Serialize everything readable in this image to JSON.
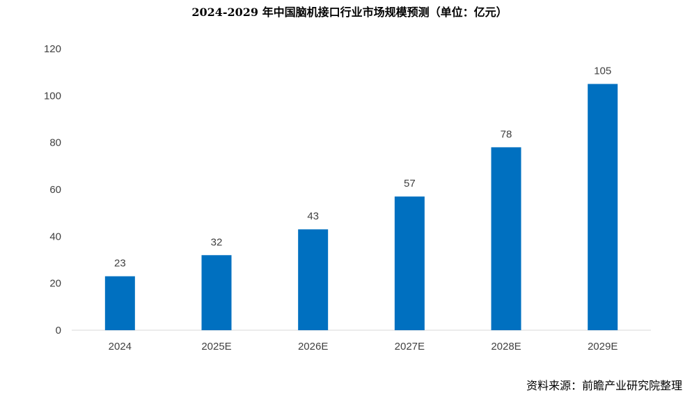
{
  "chart_data": {
    "type": "bar",
    "title": "2024-2029 年中国脑机接口行业市场规模预测（单位：亿元）",
    "categories": [
      "2024",
      "2025E",
      "2026E",
      "2027E",
      "2028E",
      "2029E"
    ],
    "values": [
      23,
      32,
      43,
      57,
      78,
      105
    ],
    "data_labels": [
      "23",
      "32",
      "43",
      "57",
      "78",
      "105"
    ],
    "xlabel": "",
    "ylabel": "",
    "ylim": [
      0,
      120
    ],
    "yticks": [
      "0",
      "20",
      "40",
      "60",
      "80",
      "100",
      "120"
    ],
    "grid": false,
    "bar_color": "#0070C0",
    "axis_color": "#D9D9D9",
    "source": "资料来源：前瞻产业研究院整理"
  }
}
